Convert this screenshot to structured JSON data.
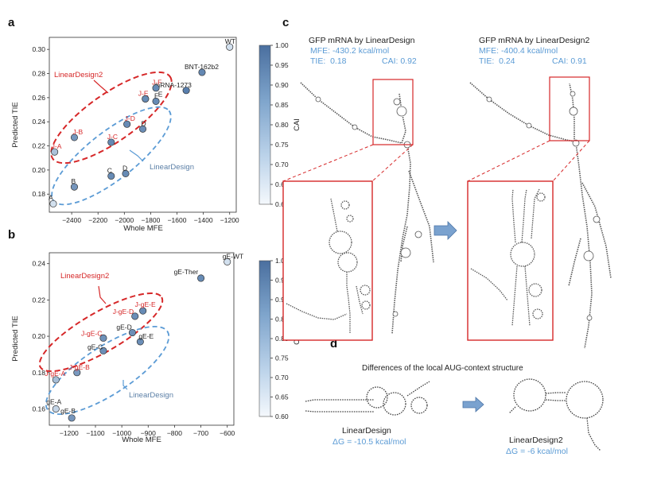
{
  "panel_labels": {
    "a": "a",
    "b": "b",
    "c": "c",
    "d": "d"
  },
  "colors": {
    "red": "#d62728",
    "blue": "#5b9bd5",
    "point_dark": "#4b74a6",
    "point_light": "#d9e6f2",
    "cbar_top": "#4a6f9f",
    "cbar_bottom": "#f4f8fc"
  },
  "chart_data": [
    {
      "type": "scatter",
      "panel": "a",
      "xlabel": "Whole MFE",
      "ylabel": "Predicted TIE",
      "xlim": [
        -2570,
        -1150
      ],
      "ylim": [
        0.165,
        0.31
      ],
      "xticks": [
        -2400,
        -2200,
        -2000,
        -1800,
        -1600,
        -1400,
        -1200
      ],
      "yticks": [
        0.18,
        0.2,
        0.22,
        0.24,
        0.26,
        0.28,
        0.3
      ],
      "xtick_labels": [
        "−2400",
        "−2200",
        "−2000",
        "−1800",
        "−1600",
        "−1400",
        "−1200"
      ],
      "ytick_labels": [
        "0.18",
        "0.20",
        "0.22",
        "0.24",
        "0.26",
        "0.28",
        "0.30"
      ],
      "colorbar": {
        "label": "CAI",
        "min": 0.6,
        "max": 1.0,
        "ticks": [
          "1.00",
          "0.95",
          "0.90",
          "0.85",
          "0.80",
          "0.75",
          "0.70",
          "0.65",
          "0.60"
        ]
      },
      "points": [
        {
          "label": "WT",
          "x": -1200,
          "y": 0.302,
          "cai": 0.62,
          "color": "black",
          "dx": -6,
          "dy": -4
        },
        {
          "label": "BNT-162b2",
          "x": -1410,
          "y": 0.281,
          "cai": 0.93,
          "color": "black",
          "dx": -22,
          "dy": -4
        },
        {
          "label": "mRNA-1273",
          "x": -1530,
          "y": 0.266,
          "cai": 0.96,
          "color": "black",
          "dx": -40,
          "dy": -4
        },
        {
          "label": "J-F",
          "x": -1760,
          "y": 0.268,
          "cai": 0.92,
          "color": "red",
          "dx": -5,
          "dy": -4
        },
        {
          "label": "F",
          "x": -1760,
          "y": 0.257,
          "cai": 0.92,
          "color": "black",
          "dx": -2,
          "dy": -4
        },
        {
          "label": "J-E",
          "x": -1840,
          "y": 0.259,
          "cai": 0.93,
          "color": "red",
          "dx": -9,
          "dy": -4
        },
        {
          "label": "E",
          "x": -1840,
          "y": 0.259,
          "cai": 0.92,
          "color": "black",
          "dx": 16,
          "dy": -3
        },
        {
          "label": "J-D",
          "x": -1980,
          "y": 0.238,
          "cai": 0.92,
          "color": "red",
          "dx": -3,
          "dy": -4
        },
        {
          "label": "D",
          "x": -1860,
          "y": 0.234,
          "cai": 0.91,
          "color": "black",
          "dx": -2,
          "dy": -4
        },
        {
          "label": "J-C",
          "x": -2100,
          "y": 0.223,
          "cai": 0.93,
          "color": "red",
          "dx": -5,
          "dy": -4
        },
        {
          "label": "C",
          "x": -2100,
          "y": 0.195,
          "cai": 0.92,
          "color": "black",
          "dx": -5,
          "dy": -4
        },
        {
          "label": "D",
          "x": -1990,
          "y": 0.197,
          "cai": 0.92,
          "color": "black",
          "dx": -4,
          "dy": -4
        },
        {
          "label": "J-B",
          "x": -2380,
          "y": 0.227,
          "cai": 0.88,
          "color": "red",
          "dx": -2,
          "dy": -4
        },
        {
          "label": "B",
          "x": -2380,
          "y": 0.186,
          "cai": 0.88,
          "color": "black",
          "dx": -4,
          "dy": -4
        },
        {
          "label": "J-A",
          "x": -2530,
          "y": 0.215,
          "cai": 0.73,
          "color": "red",
          "dx": -4,
          "dy": -4
        },
        {
          "label": "A",
          "x": -2540,
          "y": 0.172,
          "cai": 0.62,
          "color": "black",
          "dx": -6,
          "dy": -5
        }
      ],
      "annotations": {
        "linear_design2": "LinearDesign2",
        "linear_design": "LinearDesign"
      }
    },
    {
      "type": "scatter",
      "panel": "b",
      "xlabel": "Whole MFE",
      "ylabel": "Predicted TIE",
      "xlim": [
        -1275,
        -575
      ],
      "ylim": [
        0.151,
        0.246
      ],
      "xticks": [
        -1200,
        -1100,
        -1000,
        -900,
        -800,
        -700,
        -600
      ],
      "yticks": [
        0.16,
        0.18,
        0.2,
        0.22,
        0.24
      ],
      "xtick_labels": [
        "−1200",
        "−1100",
        "−1000",
        "−900",
        "−800",
        "−700",
        "−600"
      ],
      "ytick_labels": [
        "0.16",
        "0.18",
        "0.20",
        "0.22",
        "0.24"
      ],
      "colorbar": {
        "label": "CAI",
        "min": 0.6,
        "max": 1.0,
        "ticks": [
          "1.00",
          "0.95",
          "0.90",
          "0.85",
          "0.80",
          "0.75",
          "0.70",
          "0.65",
          "0.60"
        ]
      },
      "points": [
        {
          "label": "gE-WT",
          "x": -600,
          "y": 0.241,
          "cai": 0.62,
          "color": "black",
          "dx": -6,
          "dy": -4
        },
        {
          "label": "gE-Ther",
          "x": -700,
          "y": 0.232,
          "cai": 0.92,
          "color": "black",
          "dx": -34,
          "dy": -5
        },
        {
          "label": "J-gE-E",
          "x": -920,
          "y": 0.214,
          "cai": 0.92,
          "color": "red",
          "dx": -10,
          "dy": -5
        },
        {
          "label": "J-gE-D",
          "x": -950,
          "y": 0.211,
          "cai": 0.91,
          "color": "red",
          "dx": -28,
          "dy": -3
        },
        {
          "label": "gE-D",
          "x": -960,
          "y": 0.202,
          "cai": 0.91,
          "color": "black",
          "dx": -20,
          "dy": -4
        },
        {
          "label": "gE-E",
          "x": -930,
          "y": 0.197,
          "cai": 0.91,
          "color": "black",
          "dx": -2,
          "dy": -4
        },
        {
          "label": "J-gE-C",
          "x": -1070,
          "y": 0.199,
          "cai": 0.9,
          "color": "red",
          "dx": -28,
          "dy": -3
        },
        {
          "label": "gE-C",
          "x": -1070,
          "y": 0.192,
          "cai": 0.91,
          "color": "black",
          "dx": -20,
          "dy": -2
        },
        {
          "label": "J-gE-B",
          "x": -1170,
          "y": 0.18,
          "cai": 0.87,
          "color": "red",
          "dx": -10,
          "dy": -4
        },
        {
          "label": "J-gE-A",
          "x": -1250,
          "y": 0.176,
          "cai": 0.74,
          "color": "red",
          "dx": -14,
          "dy": -5
        },
        {
          "label": "gE-A",
          "x": -1250,
          "y": 0.16,
          "cai": 0.66,
          "color": "black",
          "dx": -12,
          "dy": -6
        },
        {
          "label": "gE-B",
          "x": -1190,
          "y": 0.155,
          "cai": 0.88,
          "color": "black",
          "dx": -14,
          "dy": -6
        }
      ],
      "annotations": {
        "linear_design2": "LinearDesign2",
        "linear_design": "LinearDesign"
      }
    }
  ],
  "panel_c": {
    "left_title": "GFP mRNA by LinearDesign",
    "left_mfe": "MFE: -430.2 kcal/mol",
    "left_tie": "TIE:  0.18",
    "left_cai": "CAI: 0.92",
    "right_title": "GFP mRNA by LinearDesign2",
    "right_mfe": "MFE: -400.4 kcal/mol",
    "right_tie": "TIE:  0.24",
    "right_cai": "CAI: 0.91"
  },
  "panel_d": {
    "title": "Differences of the local AUG-context structure",
    "left_name": "LinearDesign",
    "left_dg": "ΔG = -10.5 kcal/mol",
    "right_name": "LinearDesign2",
    "right_dg": "ΔG = -6 kcal/mol"
  }
}
